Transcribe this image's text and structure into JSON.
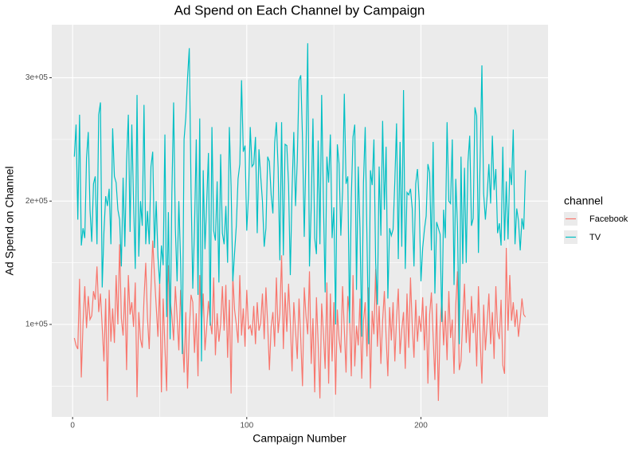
{
  "chart_data": {
    "type": "line",
    "title": "Ad Spend on Each Channel by Campaign",
    "x_label": "Campaign Number",
    "y_label": "Ad Spend on Channel",
    "legend_title": "channel",
    "legend_position": "right",
    "grid": true,
    "background": "#EBEBEB",
    "xlim": [
      -11.95,
      272.95
    ],
    "ylim": [
      25000,
      343000
    ],
    "xticks": [
      0,
      100,
      200
    ],
    "yticks": [
      {
        "value": 100000,
        "label": "1e+05"
      },
      {
        "value": 200000,
        "label": "2e+05"
      },
      {
        "value": 300000,
        "label": "3e+05"
      }
    ],
    "minor_xticks": [
      50,
      150,
      250
    ],
    "minor_yticks": [
      50000,
      150000,
      250000
    ],
    "x": [
      1,
      2,
      3,
      4,
      5,
      6,
      7,
      8,
      9,
      10,
      11,
      12,
      13,
      14,
      15,
      16,
      17,
      18,
      19,
      20,
      21,
      22,
      23,
      24,
      25,
      26,
      27,
      28,
      29,
      30,
      31,
      32,
      33,
      34,
      35,
      36,
      37,
      38,
      39,
      40,
      41,
      42,
      43,
      44,
      45,
      46,
      47,
      48,
      49,
      50,
      51,
      52,
      53,
      54,
      55,
      56,
      57,
      58,
      59,
      60,
      61,
      62,
      63,
      64,
      65,
      66,
      67,
      68,
      69,
      70,
      71,
      72,
      73,
      74,
      75,
      76,
      77,
      78,
      79,
      80,
      81,
      82,
      83,
      84,
      85,
      86,
      87,
      88,
      89,
      90,
      91,
      92,
      93,
      94,
      95,
      96,
      97,
      98,
      99,
      100,
      101,
      102,
      103,
      104,
      105,
      106,
      107,
      108,
      109,
      110,
      111,
      112,
      113,
      114,
      115,
      116,
      117,
      118,
      119,
      120,
      121,
      122,
      123,
      124,
      125,
      126,
      127,
      128,
      129,
      130,
      131,
      132,
      133,
      134,
      135,
      136,
      137,
      138,
      139,
      140,
      141,
      142,
      143,
      144,
      145,
      146,
      147,
      148,
      149,
      150,
      151,
      152,
      153,
      154,
      155,
      156,
      157,
      158,
      159,
      160,
      161,
      162,
      163,
      164,
      165,
      166,
      167,
      168,
      169,
      170,
      171,
      172,
      173,
      174,
      175,
      176,
      177,
      178,
      179,
      180,
      181,
      182,
      183,
      184,
      185,
      186,
      187,
      188,
      189,
      190,
      191,
      192,
      193,
      194,
      195,
      196,
      197,
      198,
      199,
      200,
      201,
      202,
      203,
      204,
      205,
      206,
      207,
      208,
      209,
      210,
      211,
      212,
      213,
      214,
      215,
      216,
      217,
      218,
      219,
      220,
      221,
      222,
      223,
      224,
      225,
      226,
      227,
      228,
      229,
      230,
      231,
      232,
      233,
      234,
      235,
      236,
      237,
      238,
      239,
      240,
      241,
      242,
      243,
      244,
      245,
      246,
      247,
      248,
      249,
      250,
      251,
      252,
      253,
      254,
      255,
      256,
      257,
      258,
      259,
      260
    ],
    "series": [
      {
        "name": "Facebook",
        "color": "#F8766D",
        "values": [
          89000,
          83000,
          80000,
          137000,
          57000,
          101000,
          131000,
          97000,
          123000,
          104000,
          107000,
          127000,
          120000,
          147000,
          110000,
          125000,
          98000,
          70000,
          121000,
          38000,
          128000,
          86000,
          113000,
          85000,
          140000,
          100000,
          165000,
          105000,
          91000,
          130000,
          63000,
          140000,
          108000,
          118000,
          98000,
          134000,
          41000,
          110000,
          88000,
          81000,
          121000,
          150000,
          105000,
          80000,
          128000,
          168000,
          140000,
          115000,
          90000,
          134000,
          45000,
          121000,
          82000,
          46000,
          148000,
          120000,
          107000,
          87000,
          131000,
          106000,
          79000,
          128000,
          93000,
          61000,
          110000,
          48000,
          95000,
          124000,
          118000,
          77000,
          109000,
          58000,
          140000,
          99000,
          125000,
          79000,
          98000,
          119000,
          103000,
          92000,
          138000,
          75000,
          109000,
          86000,
          100000,
          131000,
          95000,
          132000,
          73000,
          120000,
          44000,
          139000,
          112000,
          100000,
          85000,
          140000,
          91000,
          113000,
          82000,
          128000,
          96000,
          99000,
          91000,
          115000,
          84000,
          118000,
          95000,
          101000,
          125000,
          88000,
          130000,
          100000,
          63000,
          98000,
          110000,
          82000,
          138000,
          93000,
          109000,
          156000,
          80000,
          126000,
          94000,
          133000,
          102000,
          62000,
          118000,
          95000,
          72000,
          121000,
          88000,
          50000,
          130000,
          107000,
          92000,
          143000,
          68000,
          105000,
          45000,
          122000,
          84000,
          40000,
          117000,
          93000,
          64000,
          134000,
          52000,
          125000,
          70000,
          118000,
          43000,
          112000,
          88000,
          77000,
          131000,
          96000,
          61000,
          123000,
          108000,
          58000,
          140000,
          66000,
          99000,
          83000,
          121000,
          56000,
          103000,
          118000,
          74000,
          130000,
          48000,
          111000,
          92000,
          145000,
          82000,
          115000,
          68000,
          103000,
          127000,
          90000,
          58000,
          114000,
          87000,
          118000,
          70000,
          105000,
          129000,
          76000,
          96000,
          110000,
          64000,
          125000,
          81000,
          138000,
          99000,
          73000,
          120000,
          86000,
          107000,
          94000,
          122000,
          79000,
          115000,
          52000,
          108000,
          126000,
          90000,
          55000,
          117000,
          38000,
          98000,
          121000,
          83000,
          111000,
          71000,
          127000,
          89000,
          104000,
          60000,
          116000,
          143000,
          63000,
          70000,
          105000,
          133000,
          85000,
          112000,
          77000,
          123000,
          93000,
          109000,
          66000,
          131000,
          88000,
          52000,
          116000,
          79000,
          101000,
          125000,
          84000,
          110000,
          72000,
          131000,
          95000,
          88000,
          120000,
          67000,
          60000,
          162000,
          95000,
          140000,
          103000,
          118000,
          98000,
          112000,
          90000,
          104000,
          121000,
          108000,
          106000
        ]
      },
      {
        "name": "TV",
        "color": "#00BFC4",
        "values": [
          236000,
          262000,
          185000,
          270000,
          164000,
          178000,
          170000,
          235000,
          256000,
          193000,
          167000,
          214000,
          220000,
          165000,
          270000,
          280000,
          130000,
          175000,
          204000,
          196000,
          210000,
          165000,
          259000,
          220000,
          215000,
          193000,
          185000,
          147000,
          219000,
          163000,
          232000,
          270000,
          175000,
          262000,
          199000,
          145000,
          286000,
          155000,
          200000,
          180000,
          278000,
          165000,
          192000,
          165000,
          228000,
          240000,
          162000,
          200000,
          155000,
          133000,
          164000,
          148000,
          254000,
          106000,
          191000,
          88000,
          206000,
          280000,
          178000,
          135000,
          200000,
          152000,
          76000,
          250000,
          268000,
          300000,
          324000,
          210000,
          129000,
          178000,
          250000,
          124000,
          267000,
          70000,
          225000,
          161000,
          199000,
          239000,
          99000,
          260000,
          176000,
          168000,
          216000,
          134000,
          238000,
          174000,
          165000,
          196000,
          150000,
          260000,
          212000,
          135000,
          158000,
          180000,
          218000,
          230000,
          298000,
          240000,
          245000,
          176000,
          205000,
          260000,
          228000,
          230000,
          252000,
          174000,
          242000,
          220000,
          200000,
          163000,
          178000,
          236000,
          232000,
          205000,
          190000,
          247000,
          264000,
          227000,
          152000,
          264000,
          156000,
          246000,
          245000,
          213000,
          140000,
          209000,
          256000,
          196000,
          233000,
          298000,
          302000,
          251000,
          171000,
          240000,
          328000,
          147000,
          196000,
          267000,
          170000,
          157000,
          249000,
          165000,
          286000,
          201000,
          126000,
          236000,
          215000,
          254000,
          170000,
          195000,
          100000,
          246000,
          230000,
          172000,
          208000,
          287000,
          214000,
          220000,
          101000,
          202000,
          252000,
          262000,
          128000,
          228000,
          178000,
          90000,
          215000,
          260000,
          170000,
          84000,
          225000,
          213000,
          250000,
          150000,
          116000,
          228000,
          172000,
          265000,
          193000,
          244000,
          121000,
          178000,
          172000,
          177000,
          216000,
          263000,
          153000,
          248000,
          163000,
          290000,
          145000,
          207000,
          205000,
          210000,
          194000,
          147000,
          214000,
          226000,
          200000,
          135000,
          162000,
          177000,
          188000,
          230000,
          223000,
          160000,
          248000,
          125000,
          183000,
          178000,
          173000,
          102000,
          193000,
          170000,
          264000,
          200000,
          198000,
          250000,
          132000,
          218000,
          178000,
          84000,
          236000,
          149000,
          227000,
          150000,
          232000,
          253000,
          180000,
          186000,
          276000,
          269000,
          158000,
          236000,
          310000,
          206000,
          185000,
          204000,
          230000,
          198000,
          253000,
          209000,
          226000,
          174000,
          182000,
          164000,
          244000,
          168000,
          216000,
          169000,
          227000,
          213000,
          258000,
          165000,
          194000,
          184000,
          160000,
          186000,
          177000,
          225000
        ]
      }
    ]
  }
}
